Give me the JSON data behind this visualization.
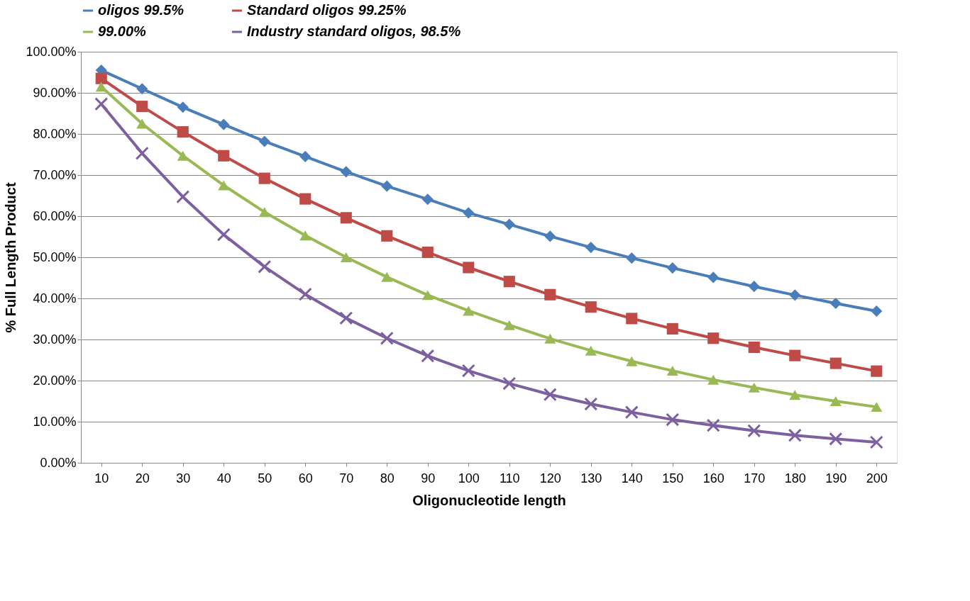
{
  "chart_data": {
    "type": "line",
    "xlabel": "Oligonucleotide length",
    "ylabel": "% Full Length Product",
    "categories": [
      "10",
      "20",
      "30",
      "40",
      "50",
      "60",
      "70",
      "80",
      "90",
      "100",
      "110",
      "120",
      "130",
      "140",
      "150",
      "160",
      "170",
      "180",
      "190",
      "200"
    ],
    "series": [
      {
        "name": "oligos 99.5%",
        "color": "#4a7ebb",
        "marker": "diamond",
        "values": [
          95.5,
          91,
          86.5,
          82.3,
          78.2,
          74.5,
          70.8,
          67.3,
          64.1,
          60.8,
          58,
          55.1,
          52.4,
          49.8,
          47.4,
          45.1,
          42.9,
          40.8,
          38.8,
          36.9
        ]
      },
      {
        "name": "Standard oligos 99.25%",
        "color": "#be4b48",
        "marker": "square",
        "values": [
          93.5,
          86.7,
          80.5,
          74.7,
          69.2,
          64.2,
          59.6,
          55.2,
          51.2,
          47.5,
          44.1,
          40.9,
          37.9,
          35.1,
          32.6,
          30.3,
          28.1,
          26.1,
          24.2,
          22.3
        ]
      },
      {
        "name": "99.00%",
        "color": "#98b954",
        "marker": "triangle",
        "values": [
          91.5,
          82.5,
          74.7,
          67.5,
          61,
          55.3,
          50,
          45.2,
          40.8,
          37,
          33.5,
          30.2,
          27.3,
          24.7,
          22.4,
          20.2,
          18.3,
          16.5,
          15,
          13.6
        ]
      },
      {
        "name": "Industry standard oligos, 98.5%",
        "color": "#7d60a0",
        "marker": "cross",
        "values": [
          87.3,
          75.3,
          64.7,
          55.5,
          47.7,
          41,
          35.2,
          30.3,
          26,
          22.4,
          19.3,
          16.6,
          14.3,
          12.3,
          10.5,
          9.1,
          7.8,
          6.7,
          5.8,
          5.0
        ]
      }
    ],
    "ylim": [
      0,
      100
    ],
    "yticks": [
      {
        "value": 0,
        "label": "0.00%"
      },
      {
        "value": 10,
        "label": "10.00%"
      },
      {
        "value": 20,
        "label": "20.00%"
      },
      {
        "value": 30,
        "label": "30.00%"
      },
      {
        "value": 40,
        "label": "40.00%"
      },
      {
        "value": 50,
        "label": "50.00%"
      },
      {
        "value": 60,
        "label": "60.00%"
      },
      {
        "value": 70,
        "label": "70.00%"
      },
      {
        "value": 80,
        "label": "80.00%"
      },
      {
        "value": 90,
        "label": "90.00%"
      },
      {
        "value": 100,
        "label": "100.00%"
      }
    ],
    "grid": "y",
    "legend": "top",
    "line_style": "solid"
  }
}
